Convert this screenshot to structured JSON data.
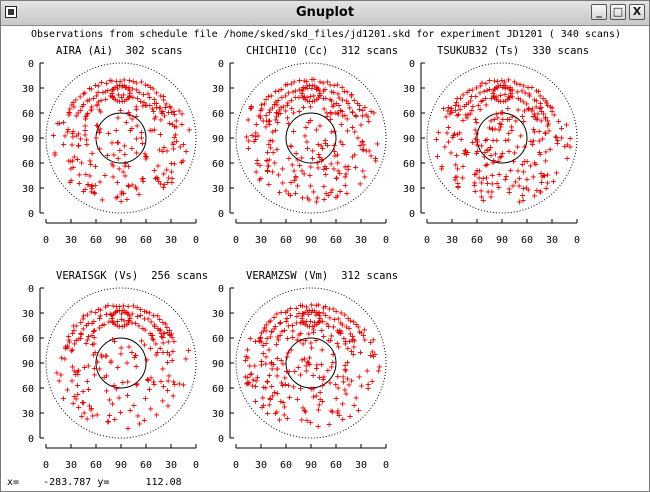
{
  "window": {
    "title": "Gnuplot",
    "buttons": {
      "minimize": "_",
      "maximize": "□",
      "close": "X"
    }
  },
  "plot": {
    "header": "Observations from schedule file /home/sked/skd_files/jd1201.skd for experiment JD1201    (    340 scans)",
    "marker": "+",
    "colors": {
      "points": "#dd0000",
      "circles": "#000000",
      "text": "#000000"
    },
    "y_ticks": [
      "0",
      "30",
      "60",
      "90",
      "60",
      "30",
      "0"
    ],
    "x_ticks": [
      "0",
      "30",
      "60",
      "90",
      "60",
      "30",
      "0"
    ],
    "panels": [
      {
        "station": "AIRA (Ai)",
        "scans": "302 scans"
      },
      {
        "station": "CHICHI10 (Cc)",
        "scans": "312 scans"
      },
      {
        "station": "TSUKUB32 (Ts)",
        "scans": "330 scans"
      },
      {
        "station": "VERAISGK (Vs)",
        "scans": "256 scans"
      },
      {
        "station": "VERAMZSW (Vm)",
        "scans": "312 scans"
      }
    ]
  },
  "status": {
    "x_label": "x=",
    "x_value": "-283.787",
    "y_label": "y=",
    "y_value": "112.08"
  }
}
